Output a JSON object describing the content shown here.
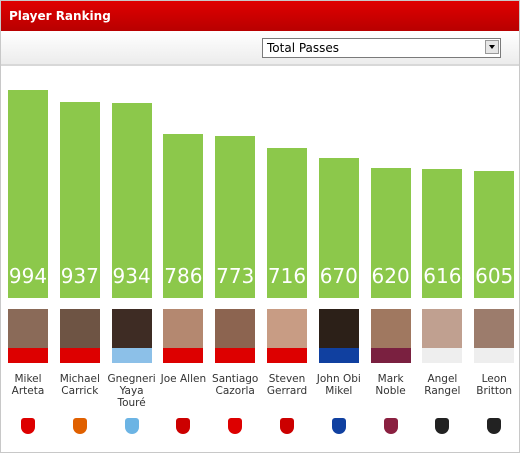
{
  "header": {
    "title": "Player Ranking"
  },
  "dropdown": {
    "selected": "Total Passes"
  },
  "chart_data": {
    "type": "bar",
    "categories": [
      "Mikel Arteta",
      "Michael Carrick",
      "Gnegneri Yaya Touré",
      "Joe Allen",
      "Santiago Cazorla",
      "Steven Gerrard",
      "John Obi Mikel",
      "Mark Noble",
      "Angel Rangel",
      "Leon Britton"
    ],
    "values": [
      994,
      937,
      934,
      786,
      773,
      716,
      670,
      620,
      616,
      605
    ],
    "color": "#8cc84b"
  }
}
